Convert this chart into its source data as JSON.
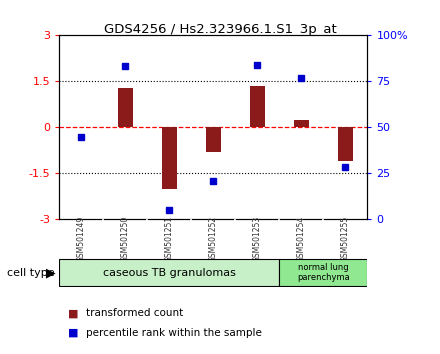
{
  "title": "GDS4256 / Hs2.323966.1.S1_3p_at",
  "samples": [
    "GSM501249",
    "GSM501250",
    "GSM501251",
    "GSM501252",
    "GSM501253",
    "GSM501254",
    "GSM501255"
  ],
  "red_values": [
    0.0,
    1.3,
    -2.0,
    -0.8,
    1.35,
    0.25,
    -1.1
  ],
  "blue_values": [
    -0.3,
    2.0,
    -2.7,
    -1.75,
    2.05,
    1.6,
    -1.3
  ],
  "ylim": [
    -3,
    3
  ],
  "yticks_left": [
    -3,
    -1.5,
    0,
    1.5,
    3
  ],
  "ytick_labels_left": [
    "-3",
    "-1.5",
    "0",
    "1.5",
    "3"
  ],
  "yticks_right_pct": [
    0,
    25,
    50,
    75,
    100
  ],
  "ytick_labels_right": [
    "0",
    "25",
    "50",
    "75",
    "100%"
  ],
  "group1_label": "caseous TB granulomas",
  "group2_label": "normal lung\nparenchyma",
  "group1_color": "#c8f0c8",
  "group2_color": "#90e890",
  "cell_type_label": "cell type",
  "legend_red": "transformed count",
  "legend_blue": "percentile rank within the sample",
  "bar_color": "#8b1a1a",
  "blue_color": "#0000cd",
  "bg_color": "#ffffff",
  "plot_bg": "#ffffff",
  "tick_box_color": "#c0c0c0"
}
